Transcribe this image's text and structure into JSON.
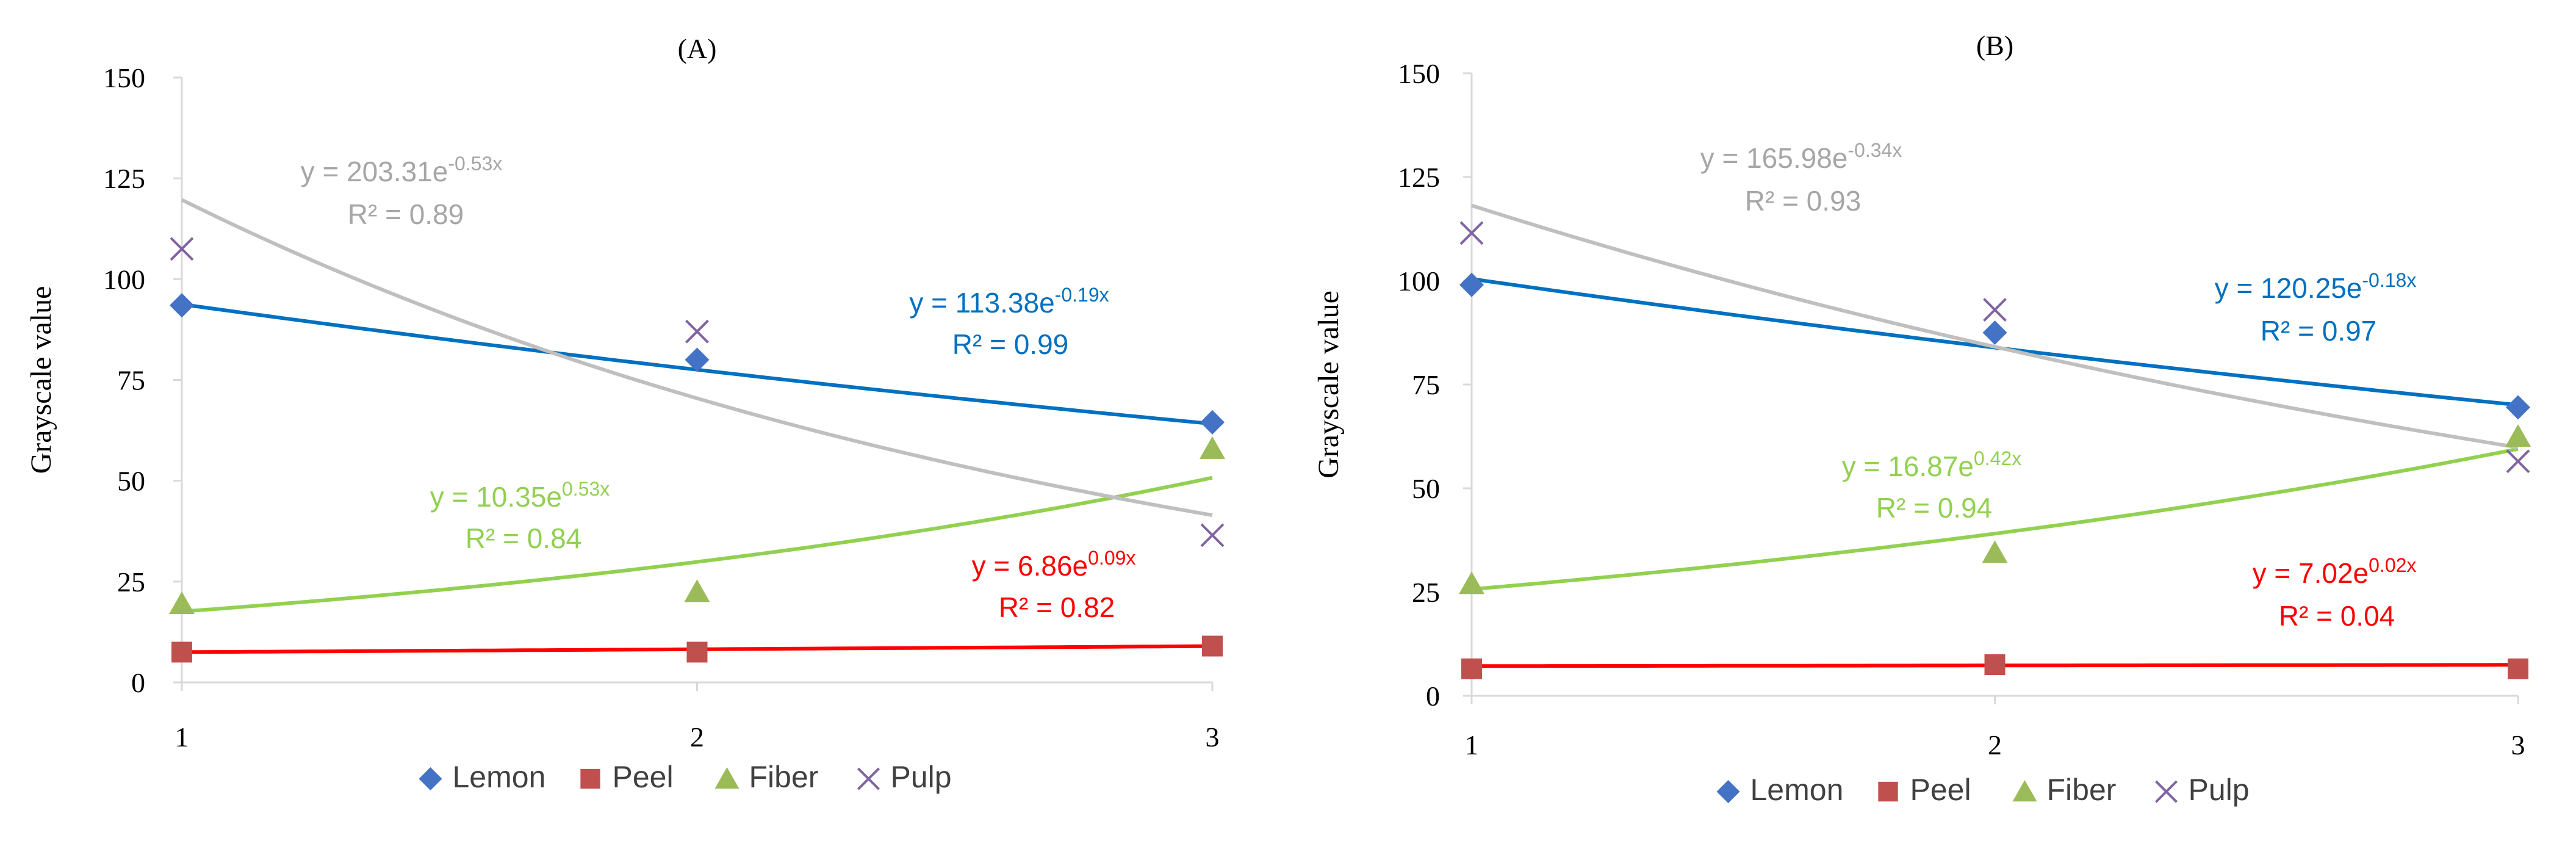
{
  "colors": {
    "lemon": "#4472c4",
    "peel": "#c0504d",
    "fiber": "#9bbb59",
    "pulp": "#8064a2",
    "lemon_fit": "#0070c0",
    "peel_fit": "#ff0000",
    "fiber_fit": "#92d050",
    "pulp_fit": "#bfbfbf",
    "pulp_eq": "#a6a6a6",
    "axis": "#d9d9d9",
    "text": "#000000"
  },
  "chart_data": [
    {
      "type": "scatter",
      "title": "(A)",
      "ylabel": "Grayscale value",
      "xlabel": "",
      "xlim": [
        1,
        3
      ],
      "ylim": [
        0,
        150
      ],
      "xticks": [
        "1",
        "2",
        "3"
      ],
      "yticks": [
        "0",
        "25",
        "50",
        "75",
        "100",
        "125",
        "150"
      ],
      "legend": [
        "Lemon",
        "Peel",
        "Fiber",
        "Pulp"
      ],
      "legend_position": "bottom",
      "series": [
        {
          "name": "Lemon",
          "marker": "diamond",
          "x": [
            1,
            2,
            3
          ],
          "values": [
            93.5,
            80,
            64.5
          ],
          "fit": {
            "a": 113.38,
            "b": -0.19,
            "equation_prefix": "y = 113.38e",
            "exponent": "-0.19x",
            "r2": "R² = 0.99"
          }
        },
        {
          "name": "Peel",
          "marker": "square",
          "x": [
            1,
            2,
            3
          ],
          "values": [
            7.5,
            7.5,
            9
          ],
          "fit": {
            "a": 6.86,
            "b": 0.09,
            "equation_prefix": "y = 6.86e",
            "exponent": "0.09x",
            "r2": "R² = 0.82"
          }
        },
        {
          "name": "Fiber",
          "marker": "triangle",
          "x": [
            1,
            2,
            3
          ],
          "values": [
            19.5,
            22.5,
            58
          ],
          "fit": {
            "a": 10.35,
            "b": 0.53,
            "equation_prefix": "y = 10.35e",
            "exponent": "0.53x",
            "r2": "R² = 0.84"
          }
        },
        {
          "name": "Pulp",
          "marker": "x",
          "x": [
            1,
            2,
            3
          ],
          "values": [
            107.5,
            87,
            36.5
          ],
          "fit": {
            "a": 203.31,
            "b": -0.53,
            "equation_prefix": "y = 203.31e",
            "exponent": "-0.53x",
            "r2": "R² = 0.89"
          }
        }
      ]
    },
    {
      "type": "scatter",
      "title": "(B)",
      "ylabel": "Grayscale value",
      "xlabel": "",
      "xlim": [
        1,
        3
      ],
      "ylim": [
        0,
        150
      ],
      "xticks": [
        "1",
        "2",
        "3"
      ],
      "yticks": [
        "0",
        "25",
        "50",
        "75",
        "100",
        "125",
        "150"
      ],
      "legend": [
        "Lemon",
        "Peel",
        "Fiber",
        "Pulp"
      ],
      "legend_position": "bottom",
      "series": [
        {
          "name": "Lemon",
          "marker": "diamond",
          "x": [
            1,
            2,
            3
          ],
          "values": [
            99,
            87.5,
            69.5
          ],
          "fit": {
            "a": 120.25,
            "b": -0.18,
            "equation_prefix": "y = 120.25e",
            "exponent": "-0.18x",
            "r2": "R² = 0.97"
          }
        },
        {
          "name": "Peel",
          "marker": "square",
          "x": [
            1,
            2,
            3
          ],
          "values": [
            6.5,
            7.5,
            6.5
          ],
          "fit": {
            "a": 7.02,
            "b": 0.02,
            "equation_prefix": "y = 7.02e",
            "exponent": "0.02x",
            "r2": "R² = 0.04"
          }
        },
        {
          "name": "Fiber",
          "marker": "triangle",
          "x": [
            1,
            2,
            3
          ],
          "values": [
            27,
            34.5,
            62.5
          ],
          "fit": {
            "a": 16.87,
            "b": 0.42,
            "equation_prefix": "y = 16.87e",
            "exponent": "0.42x",
            "r2": "R² = 0.94"
          }
        },
        {
          "name": "Pulp",
          "marker": "x",
          "x": [
            1,
            2,
            3
          ],
          "values": [
            111.5,
            93,
            56.5
          ],
          "fit": {
            "a": 165.98,
            "b": -0.34,
            "equation_prefix": "y = 165.98e",
            "exponent": "-0.34x",
            "r2": "R² = 0.93"
          }
        }
      ]
    }
  ]
}
